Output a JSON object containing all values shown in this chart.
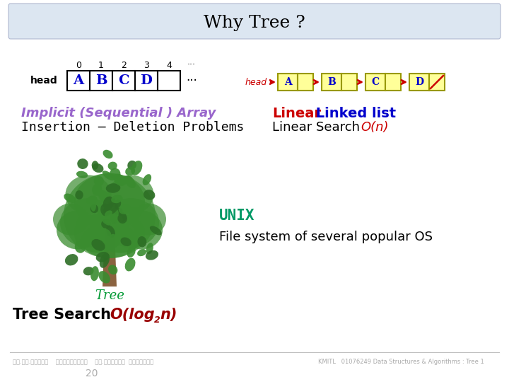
{
  "title": "Why Tree ?",
  "title_bg": "#dce6f1",
  "bg_color": "#ffffff",
  "array_items": [
    "A",
    "B",
    "C",
    "D"
  ],
  "array_color": "#0000cc",
  "linked_items": [
    "A",
    "B",
    "C",
    "D"
  ],
  "linked_item_color": "#0000cc",
  "linked_bg": "#ffff99",
  "linked_border": "#999900",
  "linked_arrow": "#cc0000",
  "head_color_left": "#000000",
  "head_color_right": "#cc0000",
  "text1_line1": "Implicit (Sequential ) Array",
  "text1_line1_color": "#9966cc",
  "text1_line2": "Insertion – Deletion Problems",
  "text1_line2_color": "#000000",
  "text2_line1_red": "Linear",
  "text2_line1_blue": " Linked list",
  "text2_line1_color_red": "#cc0000",
  "text2_line1_color_blue": "#0000cc",
  "text2_line2_black": "Linear Search ",
  "text2_line2_red": "O(n)",
  "text2_line2_color_black": "#000000",
  "text2_line2_color_red": "#cc0000",
  "unix_text": "UNIX",
  "unix_color": "#009966",
  "unix_sub": "File system of several popular OS",
  "unix_sub_color": "#000000",
  "tree_label": "Tree",
  "tree_label_color": "#009933",
  "tree_search_black": "Tree Search ",
  "tree_search_red1": "O(log",
  "tree_search_sub": "2",
  "tree_search_red2": "n)",
  "tree_search_color_black": "#000000",
  "tree_search_color_red": "#990000",
  "footer_left": "รศ.ดร.บุญธร    เครือข่าย    รศ.กฎุววน  ครบครัน",
  "footer_right": "KMITL   01076249 Data Structures & Algorithms : Tree 1",
  "footer_num": "20",
  "footer_color": "#aaaaaa"
}
